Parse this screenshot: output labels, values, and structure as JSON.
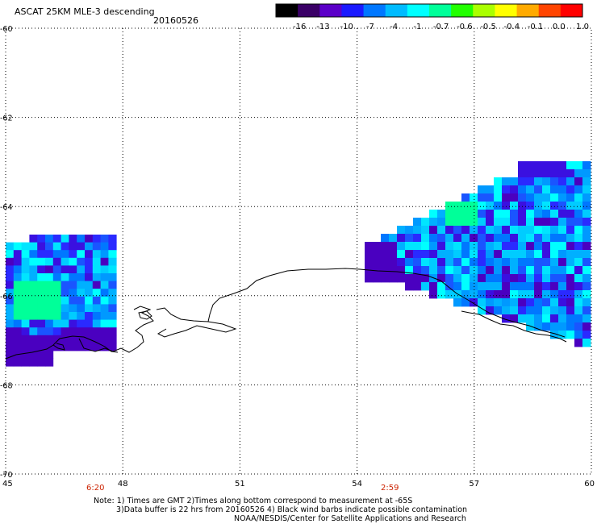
{
  "header": {
    "title": "ASCAT 25KM MLE-3 descending",
    "date": "20160526"
  },
  "colorbar": {
    "labels": [
      "-16",
      "-13",
      "-10",
      "-7",
      "-4",
      "-1",
      "-0.7",
      "-0.6",
      "-0.5",
      "-0.4",
      "-0.1",
      "0.0",
      "1.0"
    ],
    "colors": [
      "#000000",
      "#3a0066",
      "#5b00c8",
      "#1a1aff",
      "#0077ff",
      "#00bbff",
      "#00ffff",
      "#00ff99",
      "#22ff00",
      "#aaff00",
      "#ffff00",
      "#ffaa00",
      "#ff4400",
      "#ff0000"
    ]
  },
  "axes": {
    "lat_labels": [
      "-60",
      "-62",
      "-64",
      "-66",
      "-68",
      "-70"
    ],
    "lon_labels": [
      "45",
      "48",
      "51",
      "54",
      "57",
      "60"
    ],
    "lat_range": [
      -70,
      -60
    ],
    "lon_range": [
      45,
      60
    ],
    "grid": "dotted"
  },
  "times": {
    "left": "6:20",
    "right": "2:59",
    "color": "#cc2200"
  },
  "notes": {
    "line1": "Note: 1) Times are GMT 2)Times along bottom correspond to measurement at -65S",
    "line2": "3)Data buffer is 22 hrs from 20160526 4) Black wind barbs indicate possible contamination",
    "line3": "NOAA/NESDIS/Center for Satellite Applications and Research"
  }
}
